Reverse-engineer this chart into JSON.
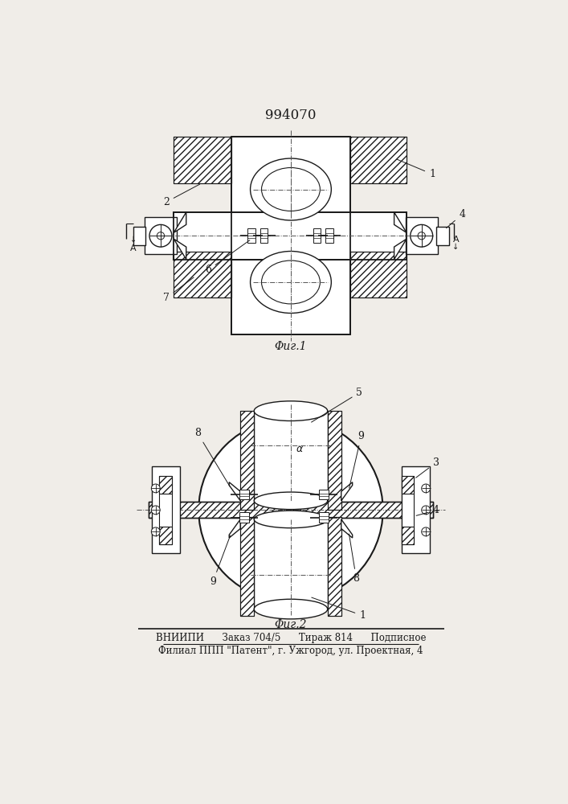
{
  "patent_number": "994070",
  "fig1_caption": "Φиг.1",
  "fig2_caption": "Φиг.2",
  "footer_line1": "ВНИИПИ      Заказ 704/5      Тираж 814      Подписное",
  "footer_line2": "Филиал ППП \"Патент\", г. Ужгород, ул. Проектная, 4",
  "bg_color": "#f0ede8",
  "line_color": "#1a1a1a"
}
